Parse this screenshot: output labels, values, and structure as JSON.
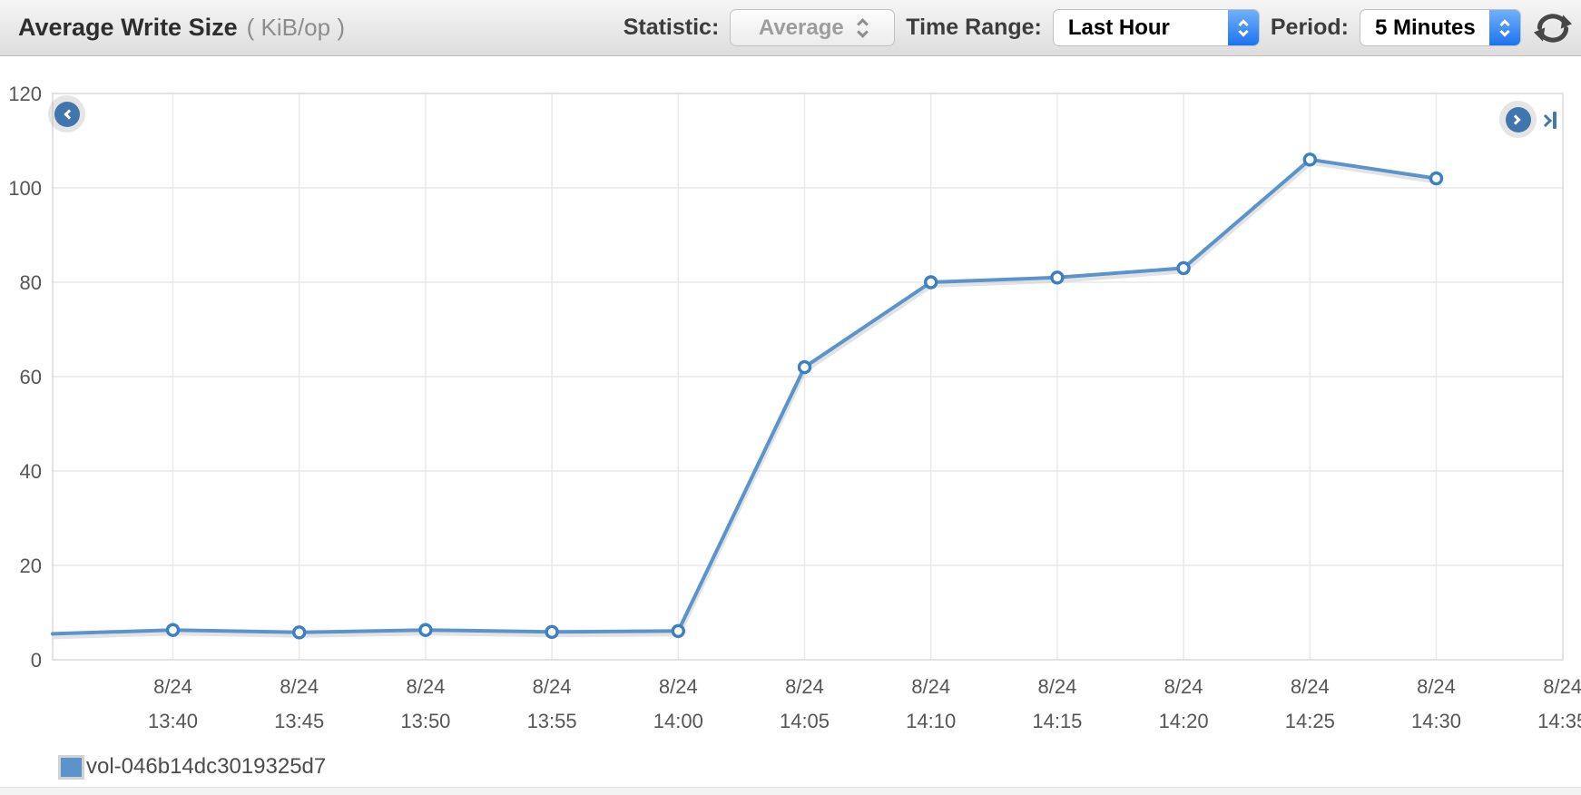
{
  "header": {
    "title": "Average Write Size",
    "unit": "( KiB/op )",
    "statistic_label": "Statistic:",
    "statistic_value": "Average",
    "time_range_label": "Time Range:",
    "time_range_value": "Last Hour",
    "period_label": "Period:",
    "period_value": "5 Minutes",
    "refresh_icon": "refresh-circular-arrows"
  },
  "nav": {
    "prev_icon": "chevron-left-circle",
    "next_icon": "chevron-right-circle",
    "skip_end_icon": "skip-to-newest"
  },
  "colors": {
    "line": "#5b94cd",
    "marker_stroke": "#3d7fc1",
    "nav_circle": "#4076ad",
    "grid": "#e9e9e9",
    "plot_border": "#d8d8d8",
    "axis_text": "#565656",
    "stepper_blue": "#1d73ef"
  },
  "chart_data": {
    "type": "line",
    "title": "Average Write Size",
    "ylabel": "KiB/op",
    "xlabel": "",
    "ylim": [
      0,
      120
    ],
    "y_ticks": [
      0,
      20,
      40,
      60,
      80,
      100,
      120
    ],
    "grid": true,
    "legend_position": "bottom-left",
    "x_ticks": [
      {
        "date": "8/24",
        "time": "13:40"
      },
      {
        "date": "8/24",
        "time": "13:45"
      },
      {
        "date": "8/24",
        "time": "13:50"
      },
      {
        "date": "8/24",
        "time": "13:55"
      },
      {
        "date": "8/24",
        "time": "14:00"
      },
      {
        "date": "8/24",
        "time": "14:05"
      },
      {
        "date": "8/24",
        "time": "14:10"
      },
      {
        "date": "8/24",
        "time": "14:15"
      },
      {
        "date": "8/24",
        "time": "14:20"
      },
      {
        "date": "8/24",
        "time": "14:25"
      },
      {
        "date": "8/24",
        "time": "14:30"
      },
      {
        "date": "8/24",
        "time": "14:35"
      }
    ],
    "edge_start_value": 5.5,
    "series": [
      {
        "name": "vol-046b14dc3019325d7",
        "color": "#5b94cd",
        "times": [
          "13:40",
          "13:45",
          "13:50",
          "13:55",
          "14:00",
          "14:05",
          "14:10",
          "14:15",
          "14:20",
          "14:25",
          "14:30"
        ],
        "values": [
          6.3,
          5.8,
          6.3,
          5.9,
          6.1,
          62,
          80,
          81,
          83,
          106,
          102
        ]
      }
    ]
  }
}
